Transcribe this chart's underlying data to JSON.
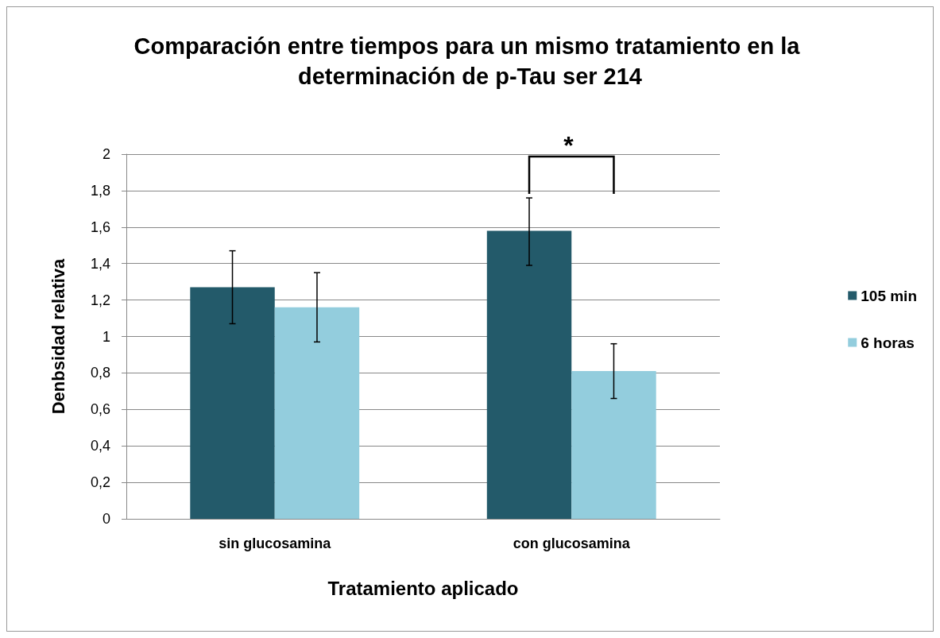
{
  "chart_data": {
    "type": "bar",
    "title": "Comparación entre tiempos para un mismo tratamiento en la determinación de p-Tau ser 214",
    "xlabel": "Tratamiento aplicado",
    "ylabel": "Denbsidad relativa",
    "categories": [
      "sin glucosamina",
      "con glucosamina"
    ],
    "series": [
      {
        "name": "105 min",
        "color": "#235a6a",
        "values": [
          1.27,
          1.58
        ],
        "errors": [
          [
            1.07,
            1.47
          ],
          [
            1.39,
            1.76
          ]
        ]
      },
      {
        "name": "6 horas",
        "color": "#93cddd",
        "values": [
          1.16,
          0.81
        ],
        "errors": [
          [
            0.97,
            1.35
          ],
          [
            0.66,
            0.96
          ]
        ]
      }
    ],
    "ylim": [
      0,
      2
    ],
    "yticks": [
      0,
      {
        "value": 0.2,
        "label": "0,2"
      },
      {
        "value": 0.4,
        "label": "0,4"
      },
      {
        "value": 0.6,
        "label": "0,6"
      },
      {
        "value": 0.8,
        "label": "0,8"
      },
      1,
      {
        "value": 1.2,
        "label": "1,2"
      },
      {
        "value": 1.4,
        "label": "1,4"
      },
      {
        "value": 1.6,
        "label": "1,6"
      },
      {
        "value": 1.8,
        "label": "1,8"
      },
      2
    ],
    "grid": "y",
    "legend": "right",
    "annotations": [
      "*"
    ]
  }
}
